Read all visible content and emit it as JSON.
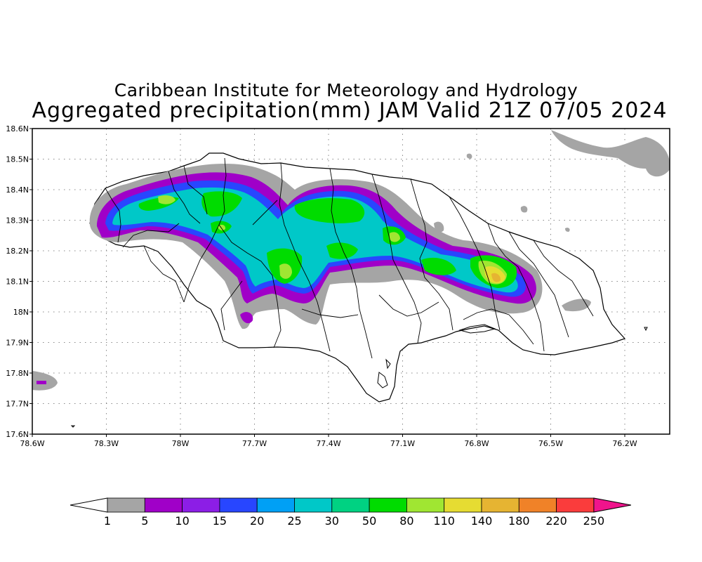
{
  "title": "Caribbean Institute for Meteorology and Hydrology",
  "subtitle": "Aggregated precipitation(mm) JAM Valid 21Z 07/05 2024",
  "map": {
    "region": "Jamaica",
    "lat_ticks": [
      "18.6N",
      "18.5N",
      "18.4N",
      "18.3N",
      "18.2N",
      "18.1N",
      "18N",
      "17.9N",
      "17.8N",
      "17.7N",
      "17.6N"
    ],
    "lon_ticks": [
      "78.6W",
      "78.3W",
      "78W",
      "77.7W",
      "77.4W",
      "77.1W",
      "76.8W",
      "76.5W",
      "76.2W"
    ],
    "grid": true
  },
  "colorbar": {
    "colors": [
      "#ffffff",
      "#a5a5a5",
      "#a000c8",
      "#8c1ee6",
      "#2846ff",
      "#00a0f5",
      "#00c8c8",
      "#00d282",
      "#00dc00",
      "#a0e632",
      "#e6dc32",
      "#e6b432",
      "#f08228",
      "#fa3c3c",
      "#f0148c"
    ],
    "labels": [
      "1",
      "5",
      "10",
      "15",
      "20",
      "25",
      "30",
      "50",
      "80",
      "110",
      "140",
      "180",
      "220",
      "250"
    ]
  }
}
